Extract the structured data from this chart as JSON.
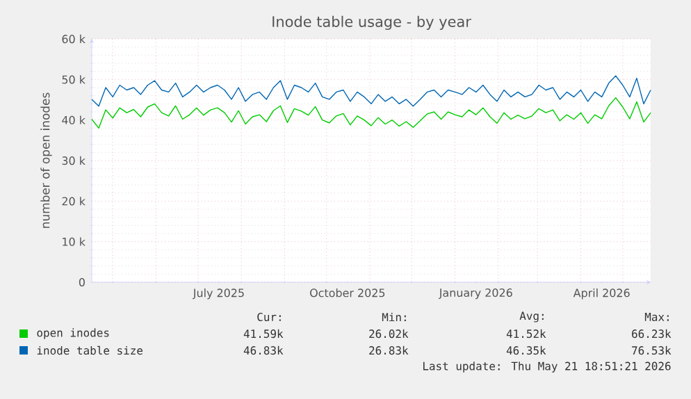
{
  "chart_data": {
    "type": "line",
    "title": "Inode table usage - by year",
    "ylabel": "number of open inodes",
    "xlim": [
      "2025-04-16",
      "2026-05-21"
    ],
    "xticks": [
      {
        "value": "2025-05-01",
        "label": null
      },
      {
        "value": "2025-06-01",
        "label": null
      },
      {
        "value": "2025-07-01",
        "label": null
      },
      {
        "value": "2025-08-01",
        "label": null
      },
      {
        "value": "2025-09-01",
        "label": null
      },
      {
        "value": "2025-10-01",
        "label": null
      },
      {
        "value": "2025-11-01",
        "label": null
      },
      {
        "value": "2025-12-01",
        "label": null
      },
      {
        "value": "2026-01-01",
        "label": null
      },
      {
        "value": "2026-02-01",
        "label": null
      },
      {
        "value": "2026-03-01",
        "label": null
      },
      {
        "value": "2026-04-01",
        "label": null
      },
      {
        "value": "2026-05-01",
        "label": null
      },
      {
        "value": "2025-07-16",
        "label": "July 2025"
      },
      {
        "value": "2025-10-16",
        "label": "October 2025"
      },
      {
        "value": "2026-01-16",
        "label": "January 2026"
      },
      {
        "value": "2026-04-16",
        "label": "April 2026"
      }
    ],
    "ylim": [
      0,
      60000
    ],
    "yticks": [
      0,
      {
        "value": 10000,
        "label": "10 k"
      },
      {
        "value": 20000,
        "label": "20 k"
      },
      {
        "value": 30000,
        "label": "30 k"
      },
      {
        "value": 40000,
        "label": "40 k"
      },
      {
        "value": 50000,
        "label": "50 k"
      },
      {
        "value": 60000,
        "label": "60 k"
      }
    ],
    "grid": true,
    "legend": "bottom",
    "x": [
      "2025-04-16",
      "2025-04-21",
      "2025-04-26",
      "2025-05-01",
      "2025-05-06",
      "2025-05-11",
      "2025-05-16",
      "2025-05-21",
      "2025-05-26",
      "2025-05-31",
      "2025-06-05",
      "2025-06-10",
      "2025-06-15",
      "2025-06-20",
      "2025-06-25",
      "2025-06-30",
      "2025-07-05",
      "2025-07-10",
      "2025-07-15",
      "2025-07-20",
      "2025-07-25",
      "2025-07-30",
      "2025-08-04",
      "2025-08-09",
      "2025-08-14",
      "2025-08-19",
      "2025-08-24",
      "2025-08-29",
      "2025-09-03",
      "2025-09-08",
      "2025-09-13",
      "2025-09-18",
      "2025-09-23",
      "2025-09-28",
      "2025-10-03",
      "2025-10-08",
      "2025-10-13",
      "2025-10-18",
      "2025-10-23",
      "2025-10-28",
      "2025-11-02",
      "2025-11-07",
      "2025-11-12",
      "2025-11-17",
      "2025-11-22",
      "2025-11-27",
      "2025-12-02",
      "2025-12-07",
      "2025-12-12",
      "2025-12-17",
      "2025-12-22",
      "2025-12-27",
      "2026-01-01",
      "2026-01-06",
      "2026-01-11",
      "2026-01-16",
      "2026-01-21",
      "2026-01-26",
      "2026-01-31",
      "2026-02-05",
      "2026-02-10",
      "2026-02-15",
      "2026-02-20",
      "2026-02-25",
      "2026-03-02",
      "2026-03-07",
      "2026-03-12",
      "2026-03-17",
      "2026-03-22",
      "2026-03-27",
      "2026-04-01",
      "2026-04-06",
      "2026-04-11",
      "2026-04-16",
      "2026-04-21",
      "2026-04-26",
      "2026-05-01",
      "2026-05-06",
      "2026-05-11",
      "2026-05-16",
      "2026-05-21"
    ],
    "series": [
      {
        "name": "open inodes",
        "color": "#00cc00",
        "values": [
          40200,
          38000,
          42500,
          40500,
          43000,
          41800,
          42600,
          40800,
          43200,
          44000,
          41800,
          41000,
          43500,
          40200,
          41300,
          43000,
          41200,
          42500,
          43000,
          41800,
          39500,
          42300,
          39000,
          40800,
          41300,
          39600,
          42300,
          43500,
          39400,
          42800,
          42200,
          41200,
          43300,
          40000,
          39300,
          41000,
          41600,
          38800,
          41000,
          40000,
          38600,
          40600,
          39000,
          40000,
          38500,
          39600,
          38200,
          39800,
          41500,
          42000,
          40200,
          42000,
          41300,
          40800,
          42500,
          41300,
          43000,
          40800,
          39200,
          41800,
          40200,
          41200,
          40300,
          41000,
          42800,
          41800,
          42500,
          39800,
          41300,
          40200,
          41800,
          39200,
          41300,
          40300,
          43500,
          45500,
          43200,
          40300,
          44500,
          39500,
          41800
        ]
      },
      {
        "name": "inode table size",
        "color": "#0066b3",
        "values": [
          45100,
          43400,
          48000,
          45700,
          48600,
          47400,
          48000,
          46300,
          48600,
          49700,
          47400,
          46900,
          49100,
          45700,
          46900,
          48600,
          46900,
          48000,
          48600,
          47400,
          45100,
          48000,
          44600,
          46300,
          46900,
          45100,
          48000,
          49700,
          45100,
          48600,
          48000,
          46900,
          49100,
          45700,
          45100,
          46900,
          47400,
          44600,
          46900,
          45700,
          44000,
          46300,
          44600,
          45700,
          44000,
          45100,
          43400,
          45100,
          46900,
          47400,
          45700,
          47400,
          46900,
          46300,
          48000,
          46900,
          48600,
          46300,
          44600,
          47400,
          45700,
          46900,
          45700,
          46300,
          48600,
          47400,
          48000,
          45100,
          46900,
          45700,
          47400,
          44600,
          46900,
          45700,
          49100,
          50900,
          48600,
          45700,
          50300,
          44000,
          47400
        ]
      }
    ],
    "annotations": [
      "Cur:",
      "Min:",
      "Avg:",
      "Max:",
      "41.59k",
      "26.02k",
      "41.52k",
      "66.23k",
      "46.83k",
      "26.83k",
      "46.35k",
      "76.53k",
      "Last update: Thu May 21 18:51:21 2026"
    ]
  }
}
